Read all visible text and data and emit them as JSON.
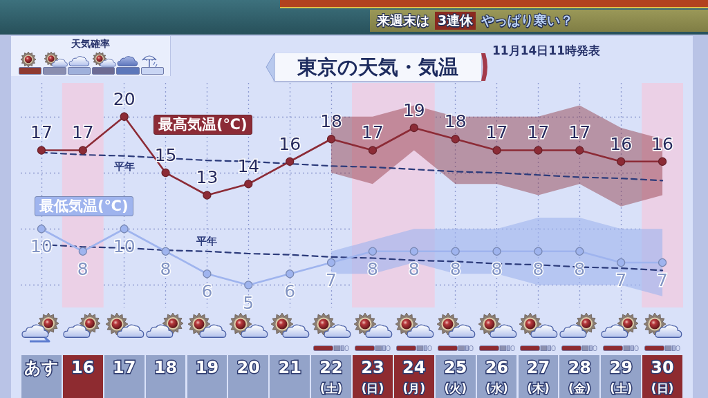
{
  "chart_data": {
    "type": "line",
    "title": "東京の天気・気温",
    "annotations": [
      "天気確率",
      "11月14日11時発表",
      "来週末は",
      "3連休",
      "やっぱり寒い？"
    ],
    "categories": [
      "あす",
      "16",
      "17",
      "18",
      "19",
      "20",
      "21",
      "22\n(土)",
      "23\n(日)",
      "24\n(月)",
      "25\n(火)",
      "26\n(水)",
      "27\n(木)",
      "28\n(金)",
      "29\n(土)",
      "30\n(日)"
    ],
    "series": [
      {
        "name": "最高気温(℃)",
        "color": "#8c2b36",
        "values": [
          17,
          17,
          20,
          15,
          13,
          14,
          16,
          18,
          17,
          19,
          18,
          17,
          17,
          17,
          16,
          16
        ],
        "value_labels": [
          "17",
          "17",
          "20",
          "15",
          "13",
          "14",
          "16",
          "18",
          "17",
          "19",
          "18",
          "17",
          "17",
          "17",
          "16",
          "16"
        ],
        "lower": [
          null,
          null,
          null,
          null,
          null,
          null,
          null,
          15,
          14,
          17,
          14,
          14,
          13,
          14,
          12,
          13
        ],
        "upper": [
          null,
          null,
          null,
          null,
          null,
          null,
          null,
          20,
          20,
          21,
          20,
          20,
          20,
          21,
          19,
          18
        ]
      },
      {
        "name": "最低気温(℃)",
        "color": "#9fb4ee",
        "values": [
          10,
          8,
          10,
          8,
          6,
          5,
          6,
          7,
          8,
          8,
          8,
          8,
          8,
          8,
          7,
          7
        ],
        "value_labels": [
          "10",
          "8",
          "10",
          "8",
          "6",
          "5",
          "6",
          "7",
          "8",
          "8",
          "8",
          "8",
          "8",
          "8",
          "7",
          "7"
        ],
        "lower": [
          null,
          null,
          null,
          null,
          null,
          null,
          null,
          6,
          6,
          7,
          6,
          6,
          5,
          5,
          5,
          4
        ],
        "upper": [
          null,
          null,
          null,
          null,
          null,
          null,
          null,
          8,
          9,
          10,
          10,
          10,
          11,
          11,
          10,
          10
        ]
      },
      {
        "name": "平年",
        "color": "#2b3a7a",
        "values": [
          16.8,
          16.6,
          16.5,
          16.3,
          16.1,
          16.0,
          15.8,
          15.6,
          15.5,
          15.3,
          15.1,
          15.0,
          14.8,
          14.6,
          14.5,
          14.3
        ],
        "line_style": "dashed",
        "marker": "none"
      },
      {
        "name": "平年",
        "color": "#2b3a7a",
        "values": [
          8.6,
          8.4,
          8.3,
          8.1,
          8.0,
          7.8,
          7.7,
          7.5,
          7.4,
          7.2,
          7.1,
          6.9,
          6.8,
          6.6,
          6.5,
          6.3
        ],
        "line_style": "dashed",
        "marker": "none"
      }
    ],
    "ylim": [
      3,
      23
    ],
    "yticks": [
      {
        "value": 5,
        "label": null
      },
      {
        "value": 10,
        "label": null
      },
      {
        "value": 15,
        "label": null
      },
      {
        "value": 20,
        "label": null
      }
    ],
    "tick_labels": "x",
    "grid": true,
    "marker": "circle",
    "bands": [
      {
        "axis": "x",
        "from": "16",
        "to": "16",
        "color": "#ebd0e6"
      },
      {
        "axis": "x",
        "from": "23\n(日)",
        "to": "24\n(月)",
        "color": "#ebd0e6"
      },
      {
        "axis": "x",
        "from": "30\n(日)",
        "to": "30\n(日)",
        "color": "#ebd0e6"
      }
    ]
  }
}
